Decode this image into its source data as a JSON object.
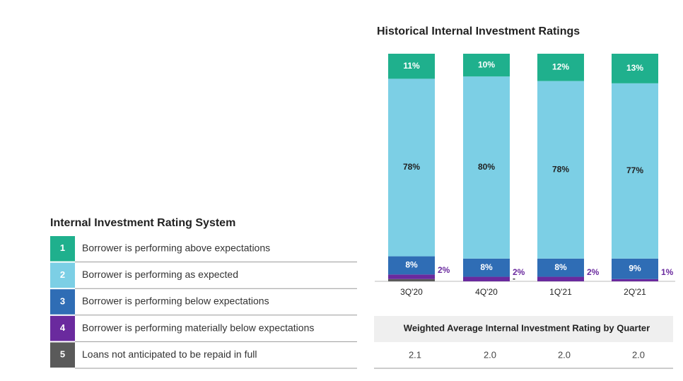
{
  "chart_data": {
    "type": "bar",
    "stacked": true,
    "title": "Historical Internal Investment Ratings",
    "legend_title": "Internal Investment Rating System",
    "categories": [
      "3Q'20",
      "4Q'20",
      "1Q'21",
      "2Q'21"
    ],
    "ylim": [
      0,
      100
    ],
    "series": [
      {
        "name": "1",
        "description": "Borrower is performing above expectations",
        "color": "#1fb08d",
        "values": [
          11,
          10,
          12,
          13
        ],
        "value_labels": [
          "11%",
          "10%",
          "12%",
          "13%"
        ]
      },
      {
        "name": "2",
        "description": "Borrower is performing as expected",
        "color": "#7ccfe5",
        "values": [
          78,
          80,
          78,
          77
        ],
        "value_labels": [
          "78%",
          "80%",
          "78%",
          "77%"
        ]
      },
      {
        "name": "3",
        "description": "Borrower is performing below expectations",
        "color": "#2f6db5",
        "values": [
          8,
          8,
          8,
          9
        ],
        "value_labels": [
          "8%",
          "8%",
          "8%",
          "9%"
        ]
      },
      {
        "name": "4",
        "description": "Borrower is performing materially below expectations",
        "color": "#6a2a9e",
        "values": [
          2,
          2,
          2,
          1
        ],
        "value_labels": [
          "2%",
          "2%",
          "2%",
          "1%"
        ]
      },
      {
        "name": "5",
        "description": "Loans not anticipated to be repaid in full",
        "color": "#5a5a5a",
        "values": [
          1,
          0,
          0,
          0
        ],
        "value_labels": [
          null,
          "-",
          null,
          null
        ]
      }
    ]
  },
  "average_table": {
    "title": "Weighted Average Internal Investment Rating by Quarter",
    "cells": [
      "2.1",
      "2.0",
      "2.0",
      "2.0"
    ]
  }
}
